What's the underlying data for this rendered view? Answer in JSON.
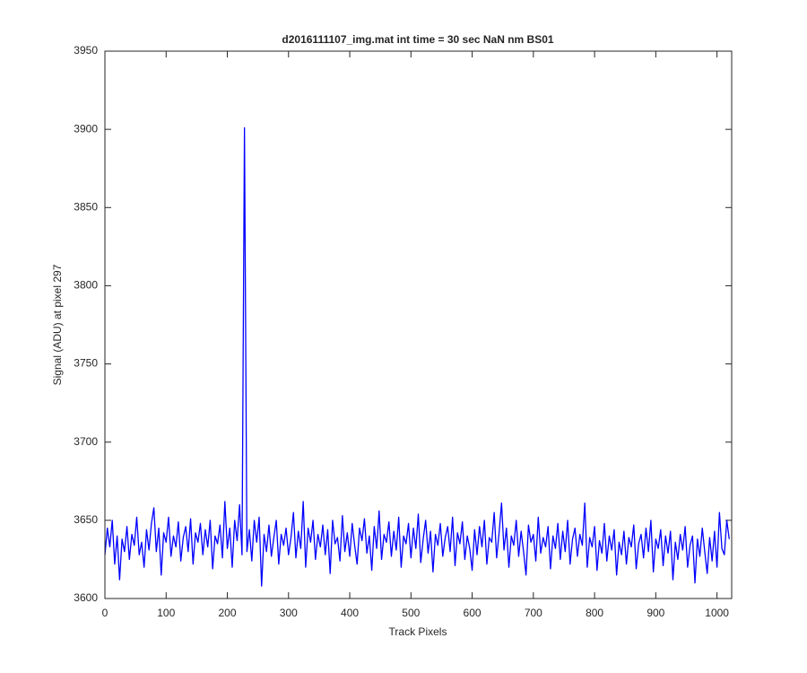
{
  "chart_data": {
    "type": "line",
    "title": "d2016111107_img.mat int time = 30 sec  NaN nm BS01",
    "x_label": "Track Pixels",
    "y_label": "Signal (ADU) at pixel 297",
    "xlim": [
      0,
      1024
    ],
    "ylim": [
      3600,
      3950
    ],
    "xticks": [
      0,
      100,
      200,
      300,
      400,
      500,
      600,
      700,
      800,
      900,
      1000
    ],
    "yticks": [
      3600,
      3650,
      3700,
      3750,
      3800,
      3850,
      3900,
      3950
    ],
    "grid": false,
    "x": [
      0,
      4,
      8,
      12,
      16,
      20,
      24,
      28,
      32,
      36,
      40,
      44,
      48,
      52,
      56,
      60,
      64,
      68,
      72,
      76,
      80,
      84,
      88,
      92,
      96,
      100,
      104,
      108,
      112,
      116,
      120,
      124,
      128,
      132,
      136,
      140,
      144,
      148,
      152,
      156,
      160,
      164,
      168,
      172,
      176,
      180,
      184,
      188,
      192,
      196,
      200,
      204,
      208,
      212,
      216,
      220,
      224,
      228,
      232,
      236,
      240,
      244,
      248,
      252,
      256,
      260,
      264,
      268,
      272,
      276,
      280,
      284,
      288,
      292,
      296,
      300,
      304,
      308,
      312,
      316,
      320,
      324,
      328,
      332,
      336,
      340,
      344,
      348,
      352,
      356,
      360,
      364,
      368,
      372,
      376,
      380,
      384,
      388,
      392,
      396,
      400,
      404,
      408,
      412,
      416,
      420,
      424,
      428,
      432,
      436,
      440,
      444,
      448,
      452,
      456,
      460,
      464,
      468,
      472,
      476,
      480,
      484,
      488,
      492,
      496,
      500,
      504,
      508,
      512,
      516,
      520,
      524,
      528,
      532,
      536,
      540,
      544,
      548,
      552,
      556,
      560,
      564,
      568,
      572,
      576,
      580,
      584,
      588,
      592,
      596,
      600,
      604,
      608,
      612,
      616,
      620,
      624,
      628,
      632,
      636,
      640,
      644,
      648,
      652,
      656,
      660,
      664,
      668,
      672,
      676,
      680,
      684,
      688,
      692,
      696,
      700,
      704,
      708,
      712,
      716,
      720,
      724,
      728,
      732,
      736,
      740,
      744,
      748,
      752,
      756,
      760,
      764,
      768,
      772,
      776,
      780,
      784,
      788,
      792,
      796,
      800,
      804,
      808,
      812,
      816,
      820,
      824,
      828,
      832,
      836,
      840,
      844,
      848,
      852,
      856,
      860,
      864,
      868,
      872,
      876,
      880,
      884,
      888,
      892,
      896,
      900,
      904,
      908,
      912,
      916,
      920,
      924,
      928,
      932,
      936,
      940,
      944,
      948,
      952,
      956,
      960,
      964,
      968,
      972,
      976,
      980,
      984,
      988,
      992,
      996,
      1000,
      1004,
      1008,
      1012,
      1016,
      1020
    ],
    "series": [
      {
        "color": "#0000ff",
        "values": [
          3628,
          3645,
          3633,
          3650,
          3622,
          3640,
          3612,
          3638,
          3630,
          3646,
          3625,
          3641,
          3634,
          3652,
          3628,
          3636,
          3620,
          3644,
          3631,
          3648,
          3658,
          3630,
          3645,
          3615,
          3642,
          3636,
          3652,
          3627,
          3640,
          3633,
          3649,
          3624,
          3639,
          3646,
          3630,
          3651,
          3622,
          3642,
          3636,
          3648,
          3628,
          3644,
          3633,
          3650,
          3619,
          3640,
          3635,
          3647,
          3626,
          3662,
          3632,
          3645,
          3620,
          3650,
          3637,
          3660,
          3628,
          3901,
          3630,
          3644,
          3624,
          3650,
          3636,
          3652,
          3608,
          3641,
          3630,
          3647,
          3627,
          3639,
          3650,
          3622,
          3641,
          3634,
          3645,
          3628,
          3639,
          3655,
          3626,
          3643,
          3632,
          3662,
          3620,
          3645,
          3636,
          3650,
          3625,
          3641,
          3633,
          3647,
          3628,
          3644,
          3616,
          3650,
          3635,
          3639,
          3624,
          3653,
          3630,
          3642,
          3627,
          3648,
          3634,
          3622,
          3645,
          3637,
          3651,
          3629,
          3640,
          3618,
          3646,
          3632,
          3656,
          3625,
          3641,
          3636,
          3649,
          3627,
          3643,
          3631,
          3652,
          3620,
          3640,
          3635,
          3648,
          3626,
          3645,
          3632,
          3654,
          3623,
          3638,
          3650,
          3629,
          3643,
          3617,
          3641,
          3634,
          3648,
          3627,
          3639,
          3646,
          3630,
          3652,
          3621,
          3642,
          3635,
          3649,
          3625,
          3640,
          3632,
          3618,
          3644,
          3628,
          3646,
          3633,
          3650,
          3622,
          3639,
          3636,
          3655,
          3626,
          3642,
          3661,
          3631,
          3645,
          3620,
          3640,
          3634,
          3650,
          3627,
          3643,
          3630,
          3615,
          3647,
          3636,
          3641,
          3624,
          3652,
          3629,
          3639,
          3633,
          3646,
          3619,
          3640,
          3632,
          3648,
          3625,
          3643,
          3630,
          3650,
          3622,
          3638,
          3645,
          3627,
          3641,
          3634,
          3661,
          3620,
          3639,
          3633,
          3646,
          3618,
          3637,
          3629,
          3648,
          3624,
          3640,
          3631,
          3644,
          3615,
          3636,
          3628,
          3643,
          3622,
          3639,
          3633,
          3647,
          3619,
          3635,
          3641,
          3626,
          3645,
          3630,
          3650,
          3617,
          3638,
          3632,
          3644,
          3621,
          3640,
          3629,
          3643,
          3612,
          3636,
          3625,
          3641,
          3631,
          3646,
          3620,
          3634,
          3640,
          3610,
          3638,
          3627,
          3645,
          3630,
          3616,
          3639,
          3624,
          3643,
          3620,
          3655,
          3632,
          3628,
          3650,
          3638
        ]
      }
    ]
  }
}
